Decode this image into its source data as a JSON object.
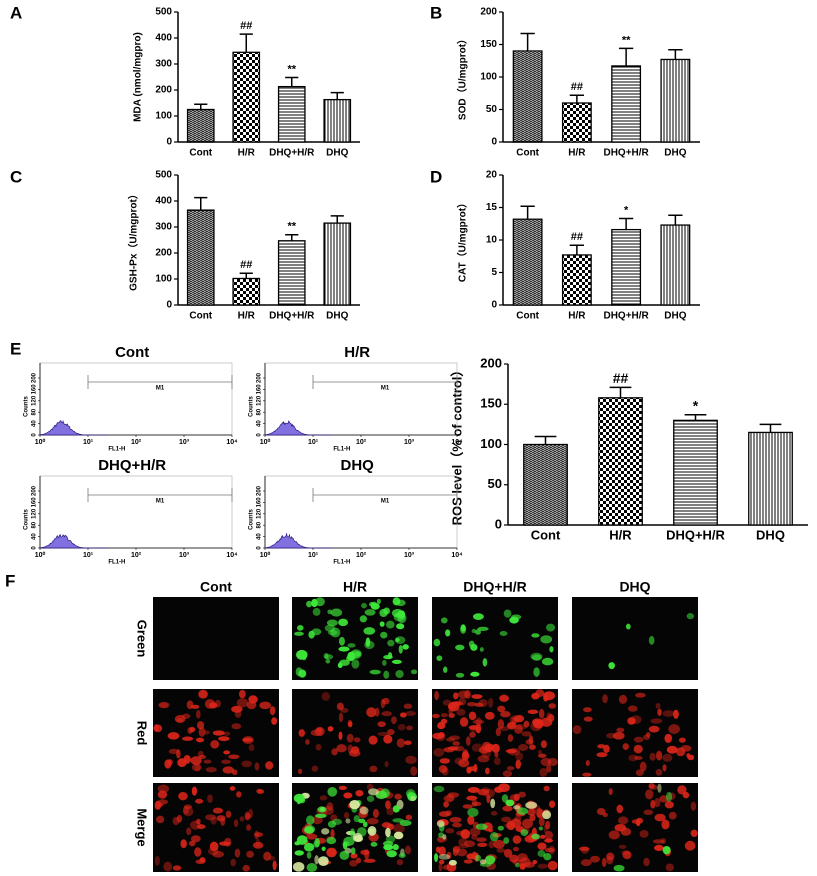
{
  "chart_data": [
    {
      "type": "bar",
      "panel": "A",
      "ylabel": "MDA (nmol/mgpro)",
      "categories": [
        "Cont",
        "H/R",
        "DHQ+H/R",
        "DHQ"
      ],
      "values": [
        125,
        345,
        213,
        163
      ],
      "errors": [
        20,
        70,
        35,
        27
      ],
      "annotations": [
        null,
        "##",
        "**",
        null
      ],
      "ylim": [
        0,
        500
      ],
      "yticks": [
        0,
        100,
        200,
        300,
        400,
        500
      ],
      "color": "#000000"
    },
    {
      "type": "bar",
      "panel": "B",
      "ylabel": "SOD（U/mgprot）",
      "categories": [
        "Cont",
        "H/R",
        "DHQ+H/R",
        "DHQ"
      ],
      "values": [
        140,
        60,
        117,
        127
      ],
      "errors": [
        27,
        12,
        27,
        15
      ],
      "annotations": [
        null,
        "##",
        "**",
        null
      ],
      "ylim": [
        0,
        200
      ],
      "yticks": [
        0,
        50,
        100,
        150,
        200
      ],
      "color": "#000000"
    },
    {
      "type": "bar",
      "panel": "C",
      "ylabel": "GSH-Px（U/mgprot）",
      "categories": [
        "Cont",
        "H/R",
        "DHQ+H/R",
        "DHQ"
      ],
      "values": [
        365,
        102,
        247,
        315
      ],
      "errors": [
        48,
        20,
        23,
        28
      ],
      "annotations": [
        null,
        "##",
        "**",
        null
      ],
      "ylim": [
        0,
        500
      ],
      "yticks": [
        0,
        100,
        200,
        300,
        400,
        500
      ],
      "color": "#000000"
    },
    {
      "type": "bar",
      "panel": "D",
      "ylabel": "CAT（U/mgprot）",
      "categories": [
        "Cont",
        "H/R",
        "DHQ+H/R",
        "DHQ"
      ],
      "values": [
        13.2,
        7.7,
        11.6,
        12.3
      ],
      "errors": [
        2,
        1.5,
        1.7,
        1.5
      ],
      "annotations": [
        null,
        "##",
        "*",
        null
      ],
      "ylim": [
        0,
        20
      ],
      "yticks": [
        0,
        5,
        10,
        15,
        20
      ],
      "color": "#000000"
    },
    {
      "type": "bar",
      "panel": "E",
      "ylabel": "ROS level（% of control）",
      "categories": [
        "Cont",
        "H/R",
        "DHQ+H/R",
        "DHQ"
      ],
      "values": [
        100,
        158,
        130,
        115
      ],
      "errors": [
        10,
        13,
        7,
        10
      ],
      "annotations": [
        null,
        "##",
        "*",
        null
      ],
      "ylim": [
        0,
        200
      ],
      "yticks": [
        0,
        50,
        100,
        150,
        200
      ],
      "color": "#000000"
    }
  ],
  "flow_cytometry": {
    "titles": [
      "Cont",
      "H/R",
      "DHQ+H/R",
      "DHQ"
    ],
    "ylabel": "Counts",
    "xlabel": "FL1-H",
    "ylim": [
      0,
      200
    ],
    "yticks": [
      0,
      40,
      80,
      120,
      160,
      200
    ],
    "xlim": [
      1,
      10000
    ],
    "log_x": true,
    "xticks": [
      {
        "value": 1,
        "label": "10⁰"
      },
      {
        "value": 10,
        "label": "10¹"
      },
      {
        "value": 100,
        "label": "10²"
      },
      {
        "value": 1000,
        "label": "10³"
      },
      {
        "value": 10000,
        "label": "10⁴"
      }
    ],
    "gate": {
      "label": "M1",
      "xlim": [
        10,
        10000
      ]
    },
    "color": "#8070e0"
  },
  "micrographs": {
    "panel": "F",
    "columns": [
      "Cont",
      "H/R",
      "DHQ+H/R",
      "DHQ"
    ],
    "rows": [
      "Green",
      "Red",
      "Merge"
    ]
  }
}
